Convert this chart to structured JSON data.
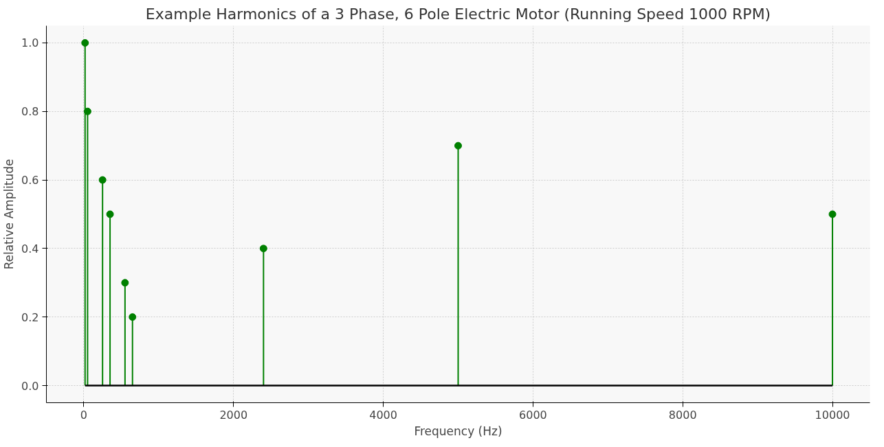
{
  "chart_data": {
    "type": "lollipop",
    "title": "Example Harmonics of a 3 Phase, 6 Pole Electric Motor (Running Speed 1000 RPM)",
    "xlabel": "Frequency (Hz)",
    "ylabel": "Relative Amplitude",
    "x": [
      16.7,
      50,
      250,
      350,
      550,
      650,
      2400,
      5000,
      10000
    ],
    "values": [
      1.0,
      0.8,
      0.6,
      0.5,
      0.3,
      0.2,
      0.4,
      0.7,
      0.5
    ],
    "color": "#008000",
    "xlim": [
      -500,
      10500
    ],
    "xticks": [
      0,
      2000,
      4000,
      6000,
      8000,
      10000
    ],
    "ylim": [
      -0.05,
      1.05
    ],
    "yticks": [
      {
        "value": 0,
        "label": "0.0"
      },
      {
        "value": 0.2,
        "label": "0.2"
      },
      {
        "value": 0.4,
        "label": "0.4"
      },
      {
        "value": 0.6,
        "label": "0.6"
      },
      {
        "value": 0.8,
        "label": "0.8"
      },
      {
        "value": 1.0,
        "label": "1.0"
      }
    ],
    "grid": true,
    "marker": "circle"
  }
}
